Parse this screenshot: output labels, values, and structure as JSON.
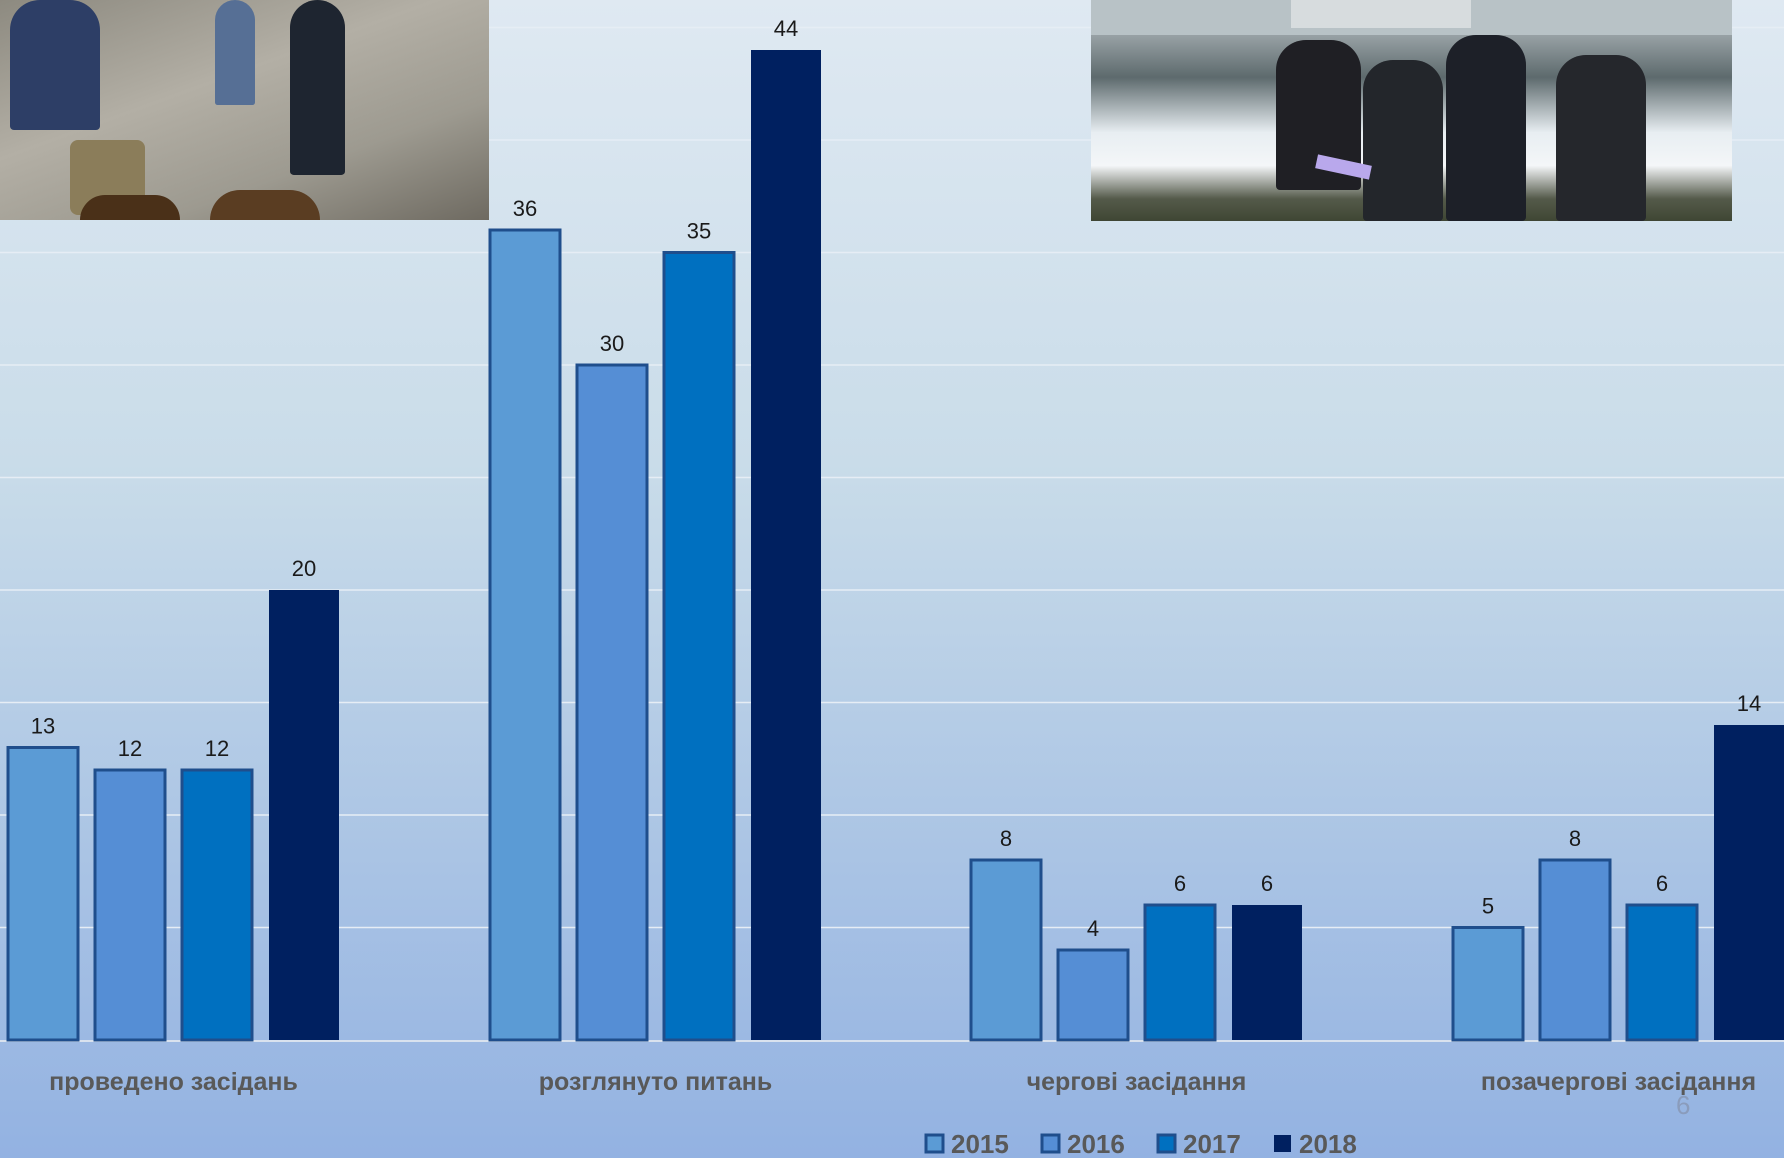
{
  "slide": {
    "page_number": "6"
  },
  "colors": {
    "2015": "#5b9bd5",
    "2016": "#558ed5",
    "2017": "#0070c0",
    "2018": "#002060",
    "bar_outline": "#1f4e8c",
    "label_text": "#595959"
  },
  "photos": [
    {
      "name": "photo-hydrant-inspection"
    },
    {
      "name": "photo-river-dam-group"
    }
  ],
  "chart_data": {
    "type": "bar",
    "categories": [
      "проведено засідань",
      "розглянуто питань",
      "чергові засідання",
      "позачергові засідання"
    ],
    "series": [
      {
        "name": "2015",
        "values": [
          13,
          36,
          8,
          5
        ]
      },
      {
        "name": "2016",
        "values": [
          12,
          30,
          4,
          8
        ]
      },
      {
        "name": "2017",
        "values": [
          12,
          35,
          6,
          6
        ]
      },
      {
        "name": "2018",
        "values": [
          20,
          44,
          6,
          14
        ]
      }
    ],
    "ylim": [
      0,
      45
    ],
    "grid": true,
    "legend": "bottom",
    "data_labels": true
  }
}
